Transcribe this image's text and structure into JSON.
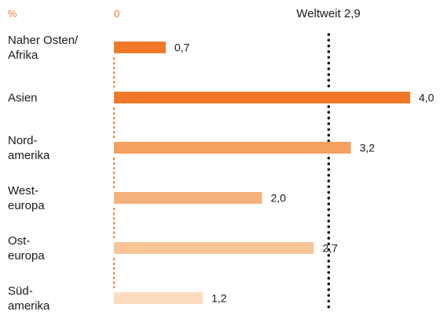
{
  "chart_data": {
    "type": "bar",
    "orientation": "horizontal",
    "unit_label": "%",
    "zero_label": "0",
    "categories": [
      [
        "Naher Osten/",
        "Afrika"
      ],
      [
        "Asien"
      ],
      [
        "Nord-",
        "amerika"
      ],
      [
        "West-",
        "europa"
      ],
      [
        "Ost-",
        "europa"
      ],
      [
        "Süd-",
        "amerika"
      ]
    ],
    "values": [
      0.7,
      4.0,
      3.2,
      2.0,
      2.7,
      1.2
    ],
    "value_labels": [
      "0,7",
      "4,0",
      "3,2",
      "2,0",
      "2,7",
      "1,2"
    ],
    "bar_colors": [
      "#f07828",
      "#f07828",
      "#f6a060",
      "#f6b07a",
      "#f9c596",
      "#fcdcbc"
    ],
    "xlim": [
      0,
      4.0
    ],
    "reference_line": {
      "value": 2.9,
      "label": "Weltweit 2,9"
    },
    "accent_color": "#f07828",
    "text_color": "#1a1a1a"
  }
}
